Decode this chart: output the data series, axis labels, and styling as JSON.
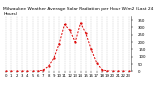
{
  "title": "Milwaukee Weather Average Solar Radiation per Hour W/m2 (Last 24 Hours)",
  "hours": [
    0,
    1,
    2,
    3,
    4,
    5,
    6,
    7,
    8,
    9,
    10,
    11,
    12,
    13,
    14,
    15,
    16,
    17,
    18,
    19,
    20,
    21,
    22,
    23
  ],
  "values": [
    0,
    0,
    0,
    0,
    0,
    0,
    1,
    8,
    35,
    90,
    190,
    320,
    280,
    200,
    330,
    260,
    150,
    60,
    12,
    2,
    0,
    0,
    0,
    0
  ],
  "line_color": "#dd0000",
  "bg_color": "#ffffff",
  "grid_color": "#bbbbbb",
  "ylim": [
    0,
    380
  ],
  "yticks": [
    0,
    50,
    100,
    150,
    200,
    250,
    300,
    350
  ],
  "title_fontsize": 3.2,
  "tick_fontsize": 2.8
}
